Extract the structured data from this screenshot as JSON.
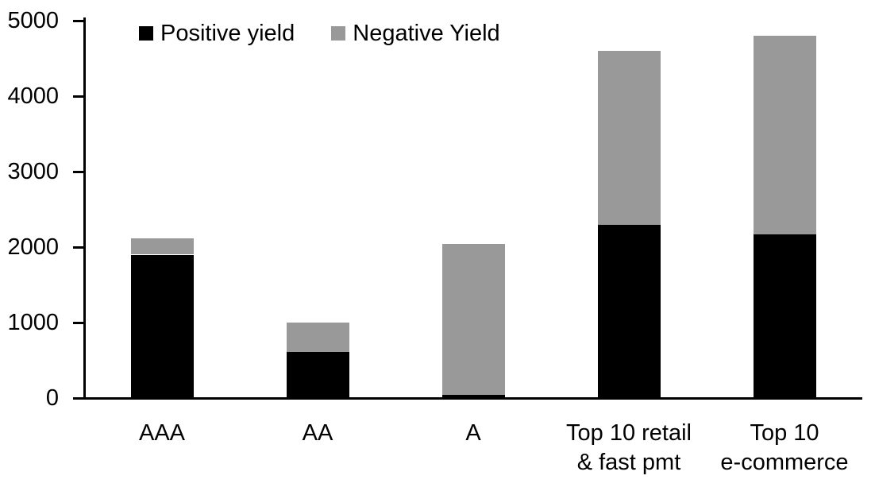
{
  "chart_data": {
    "type": "bar",
    "stacked": true,
    "title": "",
    "xlabel": "",
    "ylabel": "",
    "grid": false,
    "legend_position": "top",
    "ylim": [
      0,
      5000
    ],
    "y_ticks": [
      "0",
      "1000",
      "2000",
      "3000",
      "4000",
      "5000"
    ],
    "y_tick_values": [
      0,
      1000,
      2000,
      3000,
      4000,
      5000
    ],
    "categories": [
      "AAA",
      "AA",
      "A",
      "Top 10 retail\n& fast pmt",
      "Top 10\ne-commerce"
    ],
    "series": [
      {
        "name": "Positive yield",
        "color": "#000000",
        "values": [
          1900,
          610,
          40,
          2300,
          2170
        ]
      },
      {
        "name": "Negative Yield",
        "color": "#999999",
        "values": [
          220,
          390,
          2000,
          2300,
          2630
        ]
      }
    ]
  }
}
